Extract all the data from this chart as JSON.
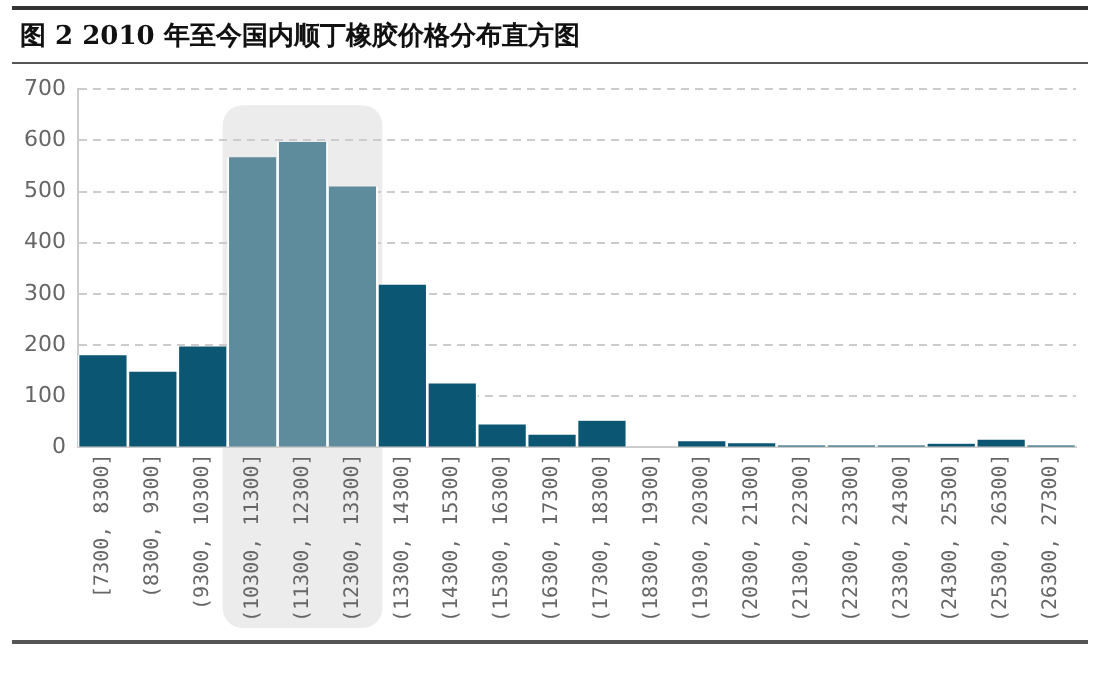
{
  "chart_data": {
    "type": "bar",
    "title": "图 2 2010 年至今国内顺丁橡胶价格分布直方图",
    "categories": [
      "[7300, 8300]",
      "(8300, 9300]",
      "(9300, 10300]",
      "(10300, 11300]",
      "(11300, 12300]",
      "(12300, 13300]",
      "(13300, 14300]",
      "(14300, 15300]",
      "(15300, 16300]",
      "(16300, 17300]",
      "(17300, 18300]",
      "(18300, 19300]",
      "(19300, 20300]",
      "(20300, 21300]",
      "(21300, 22300]",
      "(22300, 23300]",
      "(23300, 24300]",
      "(24300, 25300]",
      "(25300, 26300]",
      "(26300, 27300]"
    ],
    "values": [
      180,
      148,
      197,
      567,
      597,
      510,
      318,
      125,
      45,
      25,
      52,
      0,
      12,
      8,
      4,
      4,
      4,
      7,
      15,
      4
    ],
    "colors": [
      "#0b5672",
      "#0b5672",
      "#0b5672",
      "#5e8c9c",
      "#5e8c9c",
      "#5e8c9c",
      "#0b5672",
      "#0b5672",
      "#0b5672",
      "#0b5672",
      "#0b5672",
      "#0b5672",
      "#0b5672",
      "#0b5672",
      "#0b5672",
      "#0b5672",
      "#0b5672",
      "#0b5672",
      "#0b5672",
      "#0b5672"
    ],
    "bands": [
      {
        "axis": "x",
        "from": "(10300, 11300]",
        "to": "(12300, 13300]",
        "color": "#ececec"
      }
    ],
    "ylim": [
      0,
      700
    ],
    "yticks": [
      0,
      100,
      200,
      300,
      400,
      500,
      600,
      700
    ],
    "grid": "y",
    "legend": false
  }
}
